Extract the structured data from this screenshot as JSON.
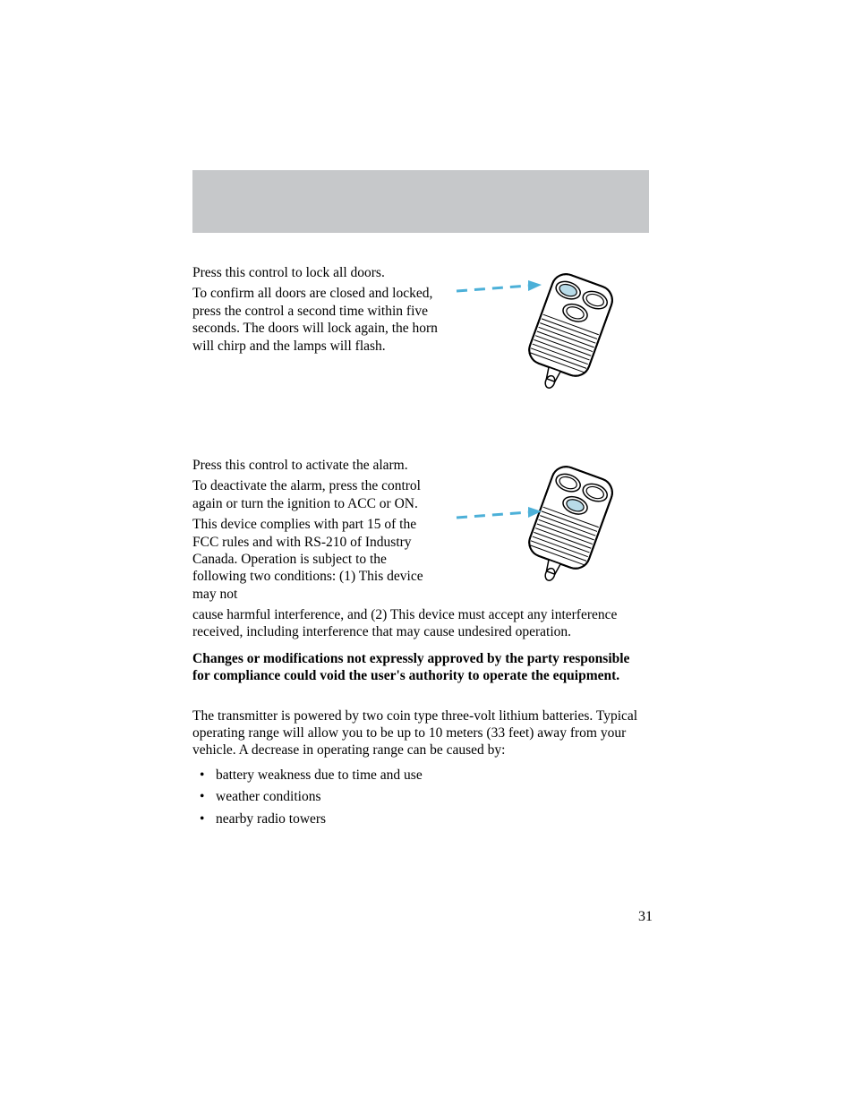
{
  "page_number": "31",
  "header_bar": {
    "background": "#c6c8ca"
  },
  "section1": {
    "p1": "Press this control to lock all doors.",
    "p2": "To confirm all doors are closed and locked, press the control a second time within five seconds. The doors will lock again, the horn will chirp and the lamps will flash."
  },
  "section2": {
    "p1": "Press this control to activate the alarm.",
    "p2": "To deactivate the alarm, press the control again or turn the ignition to ACC or ON.",
    "p3": "This device complies with part 15 of the FCC rules and with RS-210 of Industry Canada. Operation is subject to the following two conditions: (1) This device may not cause harmful interference, and (2) This device must accept any interference received, including interference that may cause undesired operation.",
    "p4_bold": "Changes or modifications not expressly approved by the party responsible for compliance could void the user's authority to operate the equipment."
  },
  "section3": {
    "p1": "The transmitter is powered by two coin type three-volt lithium batteries. Typical operating range will allow you to be up to 10 meters (33 feet) away from your vehicle. A decrease in operating range can be caused by:",
    "bullets": {
      "0": "battery weakness due to time and use",
      "1": "weather conditions",
      "2": "nearby radio towers"
    }
  },
  "figure": {
    "arrow_color": "#4cb0d8",
    "highlight_fill": "#b8dbe8",
    "stroke": "#000000",
    "hatch_stroke": "#000000"
  }
}
